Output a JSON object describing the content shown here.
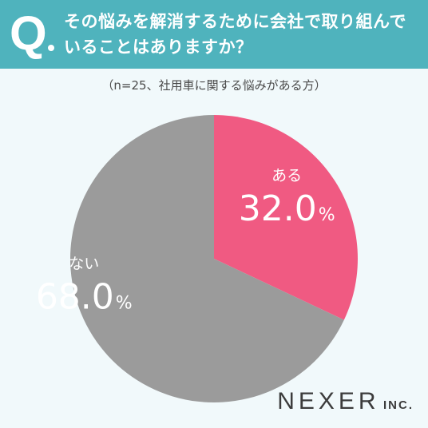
{
  "header": {
    "q_label": "Q",
    "question_line1": "その悩みを解消するために会社で取り組んで",
    "question_line2": "いることはありますか？"
  },
  "note": "（n=25、社用車に関する悩みがある方）",
  "chart_data": {
    "type": "pie",
    "categories": [
      "ある",
      "ない"
    ],
    "values": [
      32.0,
      68.0
    ],
    "value_labels": [
      "32.0",
      "68.0"
    ],
    "unit": "%",
    "colors": [
      "#f05a82",
      "#9b9b9b"
    ],
    "start_angle": "12 o'clock",
    "direction": "clockwise"
  },
  "logo": {
    "main": "NEXER",
    "suffix": "INC."
  }
}
